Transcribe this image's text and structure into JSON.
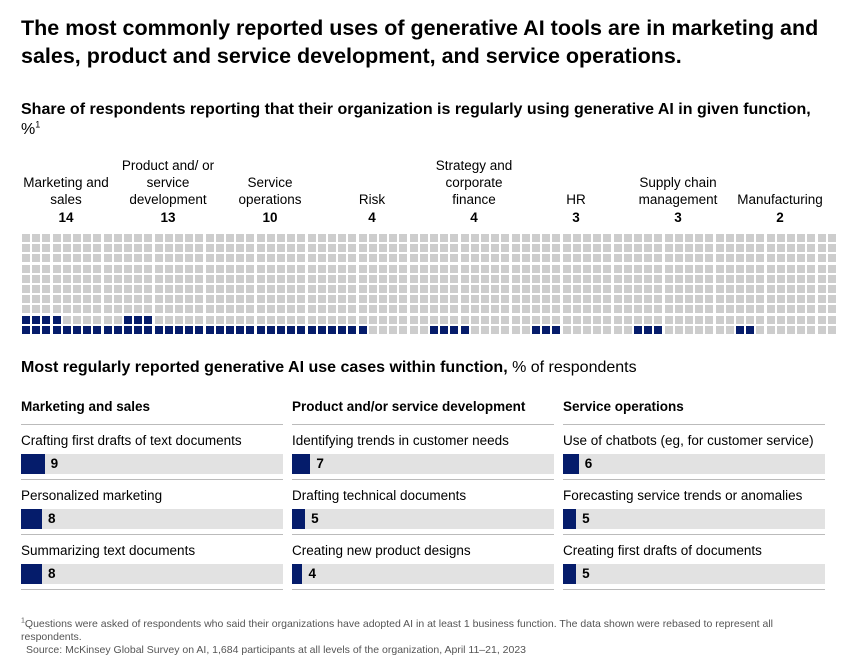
{
  "headline": "The most commonly reported uses of generative AI tools are in marketing and sales, product and service development, and service operations.",
  "subtitle": {
    "bold": "Share of respondents reporting that their organization is regularly using generative AI in given function,",
    "unit": " %",
    "marker": "1"
  },
  "chart_data": [
    {
      "type": "waffle",
      "title": "Share of respondents reporting that their organization is regularly using generative AI in given function, %",
      "categories": [
        "Marketing and sales",
        "Product and/ or service development",
        "Service operations",
        "Risk",
        "Strategy and corporate finance",
        "HR",
        "Supply chain management",
        "Manufacturing"
      ],
      "values": [
        14,
        13,
        10,
        4,
        4,
        3,
        3,
        2
      ],
      "total_cells": 100,
      "colors": {
        "highlight": "#051c6b",
        "base": "#cdcdcd"
      }
    },
    {
      "type": "bar",
      "title": "Most regularly reported generative AI use cases within function, % of respondents",
      "groups": [
        {
          "name": "Marketing and sales",
          "categories": [
            "Crafting first drafts of text documents",
            "Personalized marketing",
            "Summarizing text documents"
          ],
          "values": [
            9,
            8,
            8
          ]
        },
        {
          "name": "Product and/or service development",
          "categories": [
            "Identifying trends in customer needs",
            "Drafting technical documents",
            "Creating new product designs"
          ],
          "values": [
            7,
            5,
            4
          ]
        },
        {
          "name": "Service operations",
          "categories": [
            "Use of chatbots (eg, for customer service)",
            "Forecasting service trends or anomalies",
            "Creating first drafts of documents"
          ],
          "values": [
            6,
            5,
            5
          ]
        }
      ],
      "colors": {
        "bar": "#051c6b",
        "track": "#e2e2e2"
      }
    }
  ],
  "functions": [
    {
      "label": "Marketing and sales",
      "value": "14"
    },
    {
      "label": "Product and/ or service development",
      "value": "13"
    },
    {
      "label": "Service operations",
      "value": "10"
    },
    {
      "label": "Risk",
      "value": "4"
    },
    {
      "label": "Strategy and corporate finance",
      "value": "4"
    },
    {
      "label": "HR",
      "value": "3"
    },
    {
      "label": "Supply chain management",
      "value": "3"
    },
    {
      "label": "Manufacturing",
      "value": "2"
    }
  ],
  "section2": {
    "bold": "Most regularly reported generative AI use cases within function,",
    "unit": " % of respondents"
  },
  "use_case_columns": [
    {
      "title": "Marketing and sales",
      "items": [
        {
          "label": "Crafting first drafts of text documents",
          "value": "9"
        },
        {
          "label": "Personalized marketing",
          "value": "8"
        },
        {
          "label": "Summarizing text documents",
          "value": "8"
        }
      ]
    },
    {
      "title": "Product and/or service development",
      "items": [
        {
          "label": "Identifying trends in customer needs",
          "value": "7"
        },
        {
          "label": "Drafting technical documents",
          "value": "5"
        },
        {
          "label": "Creating new product designs",
          "value": "4"
        }
      ]
    },
    {
      "title": "Service operations",
      "items": [
        {
          "label": "Use of chatbots (eg, for customer service)",
          "value": "6"
        },
        {
          "label": "Forecasting service trends or anomalies",
          "value": "5"
        },
        {
          "label": "Creating first drafts of documents",
          "value": "5"
        }
      ]
    }
  ],
  "footnote": {
    "marker": "1",
    "text": "Questions were asked of respondents who said their organizations have adopted AI in at least 1 business function. The data shown were rebased to represent all respondents."
  },
  "source": "Source: McKinsey Global Survey on AI, 1,684 participants at all levels of the organization, April 11–21, 2023"
}
